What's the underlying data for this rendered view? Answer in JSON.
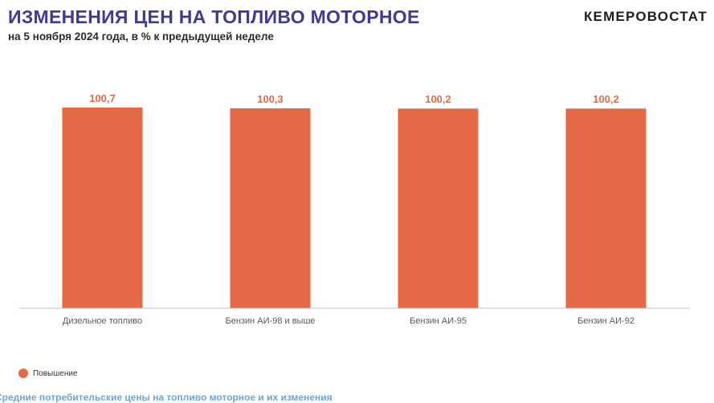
{
  "header": {
    "title": "ИЗМЕНЕНИЯ ЦЕН НА ТОПЛИВО МОТОРНОЕ",
    "subtitle": "на 5 ноября 2024 года, в % к предыдущей неделе",
    "brand": "КЕМЕРОВОСТАТ"
  },
  "legend": {
    "label": "Повышение",
    "color": "#e46a47"
  },
  "footer": {
    "text": "Средние потребительские цены на топливо моторное и их изменения"
  },
  "colors": {
    "title": "#3d3c95",
    "bar": "#e46a47",
    "value_label": "#e46a47",
    "axis": "#bfbfbf",
    "footer": "#6aa6d6"
  },
  "chart_data": {
    "type": "bar",
    "title": "ИЗМЕНЕНИЯ ЦЕН НА ТОПЛИВО МОТОРНОЕ",
    "subtitle": "на 5 ноября 2024 года, в % к предыдущей неделе",
    "categories": [
      "Дизельное топливо",
      "Бензин АИ-98 и выше",
      "Бензин АИ-95",
      "Бензин АИ-92"
    ],
    "series": [
      {
        "name": "Повышение",
        "values": [
          100.7,
          100.3,
          100.2,
          100.2
        ],
        "labels": [
          "100,7",
          "100,3",
          "100,2",
          "100,2"
        ]
      }
    ],
    "xlabel": "",
    "ylabel": "",
    "ylim": [
      0,
      100.7
    ],
    "grid": false,
    "legend_position": "bottom-left"
  }
}
